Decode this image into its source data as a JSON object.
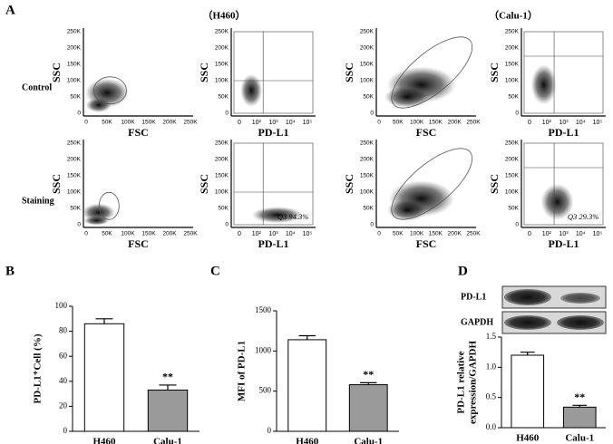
{
  "figure": {
    "panel_labels": [
      "A",
      "B",
      "C",
      "D"
    ],
    "groups": [
      "（H460）",
      "（Calu-1）"
    ],
    "rows": [
      "Control",
      "Staining"
    ],
    "scatter_ticks": [
      "0",
      "50K",
      "100K",
      "150K",
      "200K",
      "250K"
    ],
    "log_ticks": [
      "0",
      "10²",
      "10³",
      "10⁴",
      "10⁵"
    ],
    "plots": [
      {
        "x_label": "FSC",
        "y_label": "SSC"
      },
      {
        "x_label": "PD-L1",
        "y_label": "SSC"
      },
      {
        "x_label": "FSC",
        "y_label": "SSC"
      },
      {
        "x_label": "PD-L1",
        "y_label": "SSC"
      },
      {
        "x_label": "FSC",
        "y_label": "SSC"
      },
      {
        "x_label": "PD-L1",
        "y_label": "SSC",
        "annotation": "Q3  94.3%"
      },
      {
        "x_label": "FSC",
        "y_label": "SSC"
      },
      {
        "x_label": "PD-L1",
        "y_label": "SSC",
        "annotation": "Q3  29.3%"
      }
    ],
    "blot_labels": [
      "PD-L1",
      "GAPDH"
    ]
  },
  "chart_data": [
    {
      "type": "bar",
      "y_label": "PD-L1⁺Cell (%)",
      "categories": [
        "H460",
        "Calu-1"
      ],
      "values": [
        86,
        33
      ],
      "errors": [
        4,
        4
      ],
      "significance": [
        null,
        "**"
      ],
      "colors": [
        "#ffffff",
        "#9a9a9a"
      ],
      "ylim": [
        0,
        100
      ],
      "yticks": [
        0,
        20,
        40,
        60,
        80,
        100
      ]
    },
    {
      "type": "bar",
      "y_label": "MFI of PD-L1",
      "categories": [
        "H460",
        "Calu-1"
      ],
      "values": [
        1140,
        580
      ],
      "errors": [
        50,
        25
      ],
      "significance": [
        null,
        "**"
      ],
      "colors": [
        "#ffffff",
        "#9a9a9a"
      ],
      "ylim": [
        0,
        1500
      ],
      "yticks": [
        0,
        500,
        1000,
        1500
      ]
    },
    {
      "type": "bar",
      "y_label": [
        "PD-L1 relative",
        "expression/GAPDH"
      ],
      "categories": [
        "H460",
        "Calu-1"
      ],
      "values": [
        1.2,
        0.34
      ],
      "errors": [
        0.05,
        0.03
      ],
      "significance": [
        null,
        "**"
      ],
      "colors": [
        "#ffffff",
        "#9a9a9a"
      ],
      "ylim": [
        0,
        1.5
      ],
      "yticks": [
        {
          "value": 0,
          "label": "0.0"
        },
        {
          "value": 0.5,
          "label": "0.5"
        },
        {
          "value": 1,
          "label": "1.0"
        },
        {
          "value": 1.5,
          "label": "1.5"
        }
      ]
    }
  ]
}
